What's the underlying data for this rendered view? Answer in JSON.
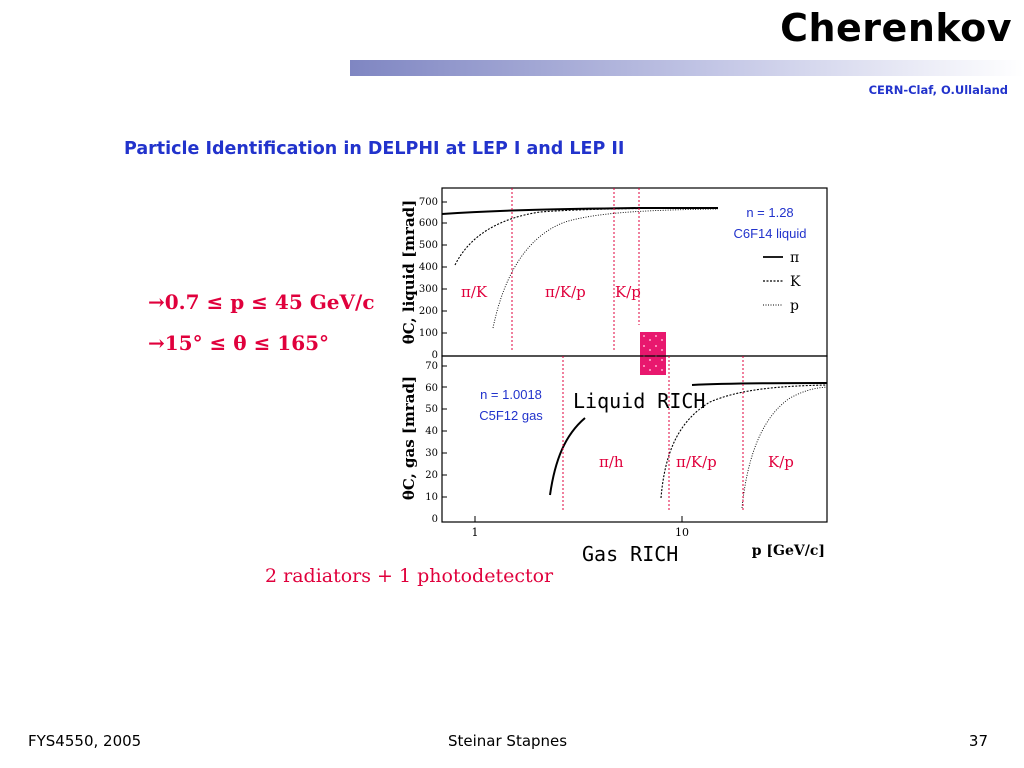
{
  "header": {
    "title": "Cherenkov",
    "credit": "CERN-Claf, O.Ullaland"
  },
  "slide": {
    "subtitle": "Particle Identification in DELPHI at LEP I and LEP II",
    "bullets": [
      "→0.7 ≤ p ≤ 45 GeV/c",
      "→15° ≤ θ ≤  165°"
    ],
    "radiators": "2 radiators + 1 photodetector",
    "labels": {
      "liquid_rich": "Liquid RICH",
      "gas_rich": "Gas RICH"
    }
  },
  "figure": {
    "top": {
      "ylabel": "θC, liquid [mrad]",
      "y_ticks": [
        "700",
        "600",
        "500",
        "400",
        "300",
        "200",
        "100",
        "0"
      ],
      "medium_line1": "n = 1.28",
      "medium_line2": "C6F14 liquid",
      "regions": [
        "π/K",
        "π/K/p",
        "K/p"
      ],
      "legend": [
        "π",
        "K",
        "p"
      ]
    },
    "bottom": {
      "ylabel": "θC, gas [mrad]",
      "y_ticks": [
        "70",
        "60",
        "50",
        "40",
        "30",
        "20",
        "10",
        "0"
      ],
      "medium_line1": "n = 1.0018",
      "medium_line2": "C5F12 gas",
      "regions": [
        "π/h",
        "π/K/p",
        "K/p"
      ]
    },
    "x_ticks": [
      "1",
      "10"
    ],
    "xlabel": "p [GeV/c]"
  },
  "footer": {
    "left": "FYS4550, 2005",
    "center": "Steinar Stapnes",
    "right": "37"
  },
  "colors": {
    "accent_blue": "#2233cc",
    "accent_red": "#e0003c",
    "highlight_pink": "#e8186e"
  }
}
